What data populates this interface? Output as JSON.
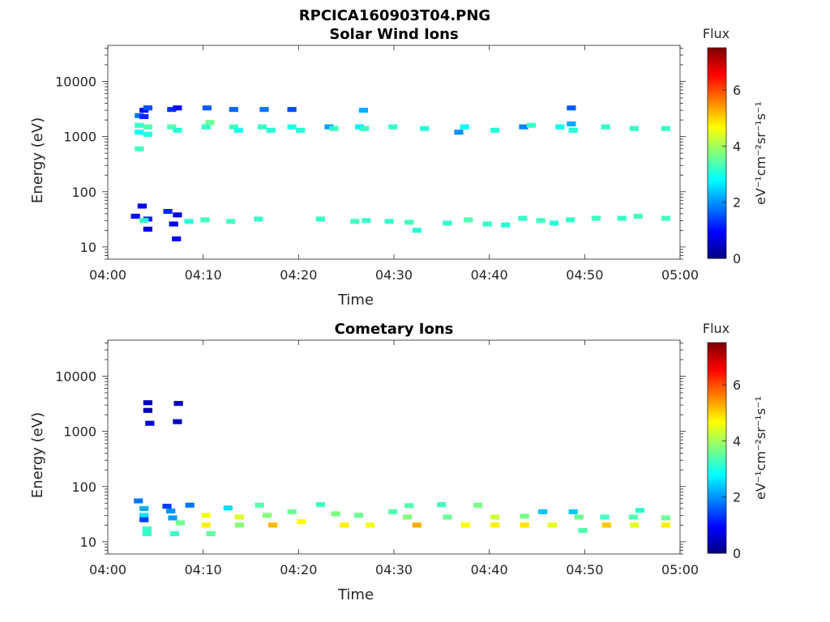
{
  "figure_title": "RPCICA160903T04.PNG",
  "colorbar": {
    "title": "Flux",
    "label": "eV⁻¹cm⁻²sr⁻¹s⁻¹",
    "ticks": [
      "0",
      "2",
      "4",
      "6"
    ],
    "tick_values": [
      0,
      2,
      4,
      6
    ],
    "range": [
      0,
      7.5
    ],
    "colormap": "jet"
  },
  "chart_data": [
    {
      "type": "heatmap",
      "title": "Solar Wind Ions",
      "xlabel": "Time",
      "ylabel": "Energy (eV)",
      "x_ticks": [
        "04:00",
        "04:10",
        "04:20",
        "04:30",
        "04:40",
        "04:50",
        "05:00"
      ],
      "x_tick_minutes": [
        0,
        10,
        20,
        30,
        40,
        50,
        60
      ],
      "y_ticks": [
        "10",
        "100",
        "1000",
        "10000"
      ],
      "y_tick_values": [
        10,
        100,
        1000,
        10000
      ],
      "y_scale": "log",
      "xlim_minutes": [
        0,
        60
      ],
      "ylim": [
        6,
        45000
      ],
      "cells": [
        [
          3.3,
          2400,
          1.8
        ],
        [
          3.3,
          1600,
          3.2
        ],
        [
          3.3,
          1200,
          2.9
        ],
        [
          3.3,
          600,
          3.3
        ],
        [
          3.8,
          3000,
          1.0
        ],
        [
          3.8,
          2300,
          1.2
        ],
        [
          4.2,
          3300,
          1.5
        ],
        [
          4.2,
          1500,
          3.4
        ],
        [
          4.2,
          1100,
          3.0
        ],
        [
          6.7,
          3100,
          1.3
        ],
        [
          7.3,
          3300,
          1.0
        ],
        [
          6.7,
          1500,
          3.4
        ],
        [
          7.3,
          1300,
          3.1
        ],
        [
          10.3,
          1500,
          3.2
        ],
        [
          10.7,
          1800,
          3.6
        ],
        [
          10.4,
          3300,
          1.6
        ],
        [
          13.2,
          1500,
          3.3
        ],
        [
          13.7,
          1300,
          3.0
        ],
        [
          13.2,
          3100,
          1.7
        ],
        [
          16.2,
          1500,
          3.2
        ],
        [
          16.4,
          3100,
          1.8
        ],
        [
          17.1,
          1300,
          3.1
        ],
        [
          19.3,
          1500,
          3.0
        ],
        [
          19.3,
          3100,
          1.5
        ],
        [
          20.2,
          1300,
          3.1
        ],
        [
          23.2,
          1500,
          2.1
        ],
        [
          23.7,
          1400,
          3.2
        ],
        [
          26.4,
          1500,
          2.7
        ],
        [
          26.9,
          1400,
          3.2
        ],
        [
          26.8,
          3000,
          2.2
        ],
        [
          29.9,
          1500,
          3.2
        ],
        [
          33.2,
          1400,
          3.1
        ],
        [
          36.8,
          1200,
          2.0
        ],
        [
          37.4,
          1500,
          2.8
        ],
        [
          40.6,
          1300,
          3.1
        ],
        [
          43.6,
          1500,
          1.9
        ],
        [
          44.4,
          1600,
          3.2
        ],
        [
          47.4,
          1500,
          2.9
        ],
        [
          48.6,
          1700,
          2.2
        ],
        [
          48.6,
          3300,
          1.6
        ],
        [
          48.8,
          1300,
          3.1
        ],
        [
          52.2,
          1500,
          3.2
        ],
        [
          55.2,
          1400,
          3.2
        ],
        [
          58.5,
          1400,
          3.2
        ],
        [
          3.6,
          55,
          0.9
        ],
        [
          4.2,
          32,
          1.2
        ],
        [
          4.2,
          21,
          0.8
        ],
        [
          2.9,
          36,
          1.0
        ],
        [
          3.8,
          30,
          3.2
        ],
        [
          6.3,
          44,
          1.2
        ],
        [
          7.3,
          38,
          0.7
        ],
        [
          6.9,
          26,
          0.8
        ],
        [
          7.2,
          14,
          0.9
        ],
        [
          8.5,
          29,
          3.1
        ],
        [
          10.2,
          31,
          3.3
        ],
        [
          12.9,
          29,
          3.3
        ],
        [
          15.8,
          32,
          3.2
        ],
        [
          22.3,
          32,
          3.2
        ],
        [
          25.9,
          29,
          3.3
        ],
        [
          27.1,
          30,
          3.2
        ],
        [
          29.5,
          29,
          3.2
        ],
        [
          31.6,
          28,
          3.3
        ],
        [
          32.4,
          20,
          3.1
        ],
        [
          35.6,
          27,
          3.2
        ],
        [
          37.8,
          31,
          3.4
        ],
        [
          39.8,
          26,
          3.2
        ],
        [
          41.7,
          25,
          3.1
        ],
        [
          43.5,
          33,
          3.2
        ],
        [
          45.4,
          30,
          3.3
        ],
        [
          46.8,
          27,
          3.1
        ],
        [
          48.5,
          31,
          3.2
        ],
        [
          51.2,
          33,
          3.3
        ],
        [
          53.9,
          33,
          3.2
        ],
        [
          55.6,
          36,
          3.3
        ],
        [
          58.5,
          33,
          3.3
        ]
      ]
    },
    {
      "type": "heatmap",
      "title": "Cometary Ions",
      "xlabel": "Time",
      "ylabel": "Energy (eV)",
      "x_ticks": [
        "04:00",
        "04:10",
        "04:20",
        "04:30",
        "04:40",
        "04:50",
        "05:00"
      ],
      "x_tick_minutes": [
        0,
        10,
        20,
        30,
        40,
        50,
        60
      ],
      "y_ticks": [
        "10",
        "100",
        "1000",
        "10000"
      ],
      "y_tick_values": [
        10,
        100,
        1000,
        10000
      ],
      "y_scale": "log",
      "xlim_minutes": [
        0,
        60
      ],
      "ylim": [
        6,
        45000
      ],
      "cells": [
        [
          4.2,
          3300,
          0.5
        ],
        [
          4.2,
          2400,
          0.4
        ],
        [
          4.4,
          1400,
          0.6
        ],
        [
          7.4,
          3200,
          0.4
        ],
        [
          7.3,
          1500,
          0.5
        ],
        [
          3.2,
          55,
          1.8
        ],
        [
          3.8,
          40,
          2.2
        ],
        [
          3.8,
          30,
          2.6
        ],
        [
          3.8,
          25,
          1.4
        ],
        [
          4.1,
          17,
          3.2
        ],
        [
          4.1,
          14,
          3.2
        ],
        [
          6.2,
          44,
          1.4
        ],
        [
          6.6,
          36,
          2.0
        ],
        [
          6.8,
          27,
          2.1
        ],
        [
          7.6,
          22,
          3.6
        ],
        [
          7.0,
          14,
          3.2
        ],
        [
          8.6,
          46,
          1.8
        ],
        [
          10.3,
          30,
          4.6
        ],
        [
          10.3,
          20,
          4.8
        ],
        [
          10.8,
          14,
          3.5
        ],
        [
          12.6,
          41,
          2.6
        ],
        [
          13.8,
          28,
          4.4
        ],
        [
          13.8,
          20,
          3.8
        ],
        [
          15.9,
          46,
          3.4
        ],
        [
          16.7,
          30,
          3.8
        ],
        [
          17.3,
          20,
          5.2
        ],
        [
          19.3,
          35,
          3.6
        ],
        [
          20.3,
          23,
          4.7
        ],
        [
          22.3,
          47,
          3.3
        ],
        [
          23.9,
          32,
          3.7
        ],
        [
          24.8,
          20,
          4.8
        ],
        [
          26.3,
          30,
          3.6
        ],
        [
          27.5,
          20,
          4.6
        ],
        [
          29.9,
          35,
          3.4
        ],
        [
          31.4,
          28,
          3.8
        ],
        [
          32.4,
          20,
          5.3
        ],
        [
          31.6,
          45,
          3.4
        ],
        [
          35.0,
          47,
          3.3
        ],
        [
          35.6,
          28,
          3.6
        ],
        [
          37.5,
          20,
          4.7
        ],
        [
          38.8,
          46,
          3.7
        ],
        [
          40.6,
          28,
          4.3
        ],
        [
          40.6,
          20,
          4.8
        ],
        [
          43.7,
          29,
          3.7
        ],
        [
          43.7,
          20,
          4.9
        ],
        [
          45.6,
          35,
          2.4
        ],
        [
          46.6,
          20,
          4.5
        ],
        [
          48.8,
          35,
          2.4
        ],
        [
          49.4,
          28,
          3.6
        ],
        [
          49.8,
          16,
          3.4
        ],
        [
          52.1,
          28,
          3.3
        ],
        [
          52.3,
          20,
          5.1
        ],
        [
          55.1,
          28,
          3.4
        ],
        [
          55.2,
          20,
          4.5
        ],
        [
          55.8,
          37,
          3.2
        ],
        [
          58.5,
          27,
          3.6
        ],
        [
          58.5,
          20,
          4.8
        ]
      ]
    }
  ]
}
